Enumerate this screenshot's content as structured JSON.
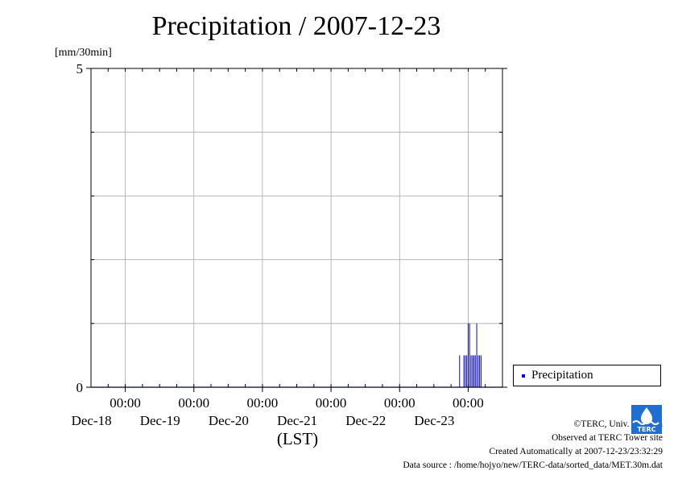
{
  "chart_data": {
    "type": "bar",
    "title": "Precipitation / 2007-12-23",
    "ylabel": "[mm/30min]",
    "xlabel": "(LST)",
    "ylim": [
      0,
      5
    ],
    "y_ticks": [
      "0",
      "5"
    ],
    "xlim": [
      "2007-12-17 12:00",
      "2007-12-23 12:00"
    ],
    "x_ticks": [
      {
        "time": "2007-12-18 00:00",
        "label": "00:00",
        "date": "Dec-18"
      },
      {
        "time": "2007-12-19 00:00",
        "label": "00:00",
        "date": "Dec-19"
      },
      {
        "time": "2007-12-20 00:00",
        "label": "00:00",
        "date": "Dec-20"
      },
      {
        "time": "2007-12-21 00:00",
        "label": "00:00",
        "date": "Dec-21"
      },
      {
        "time": "2007-12-22 00:00",
        "label": "00:00",
        "date": "Dec-22"
      },
      {
        "time": "2007-12-23 00:00",
        "label": "00:00",
        "date": "Dec-23"
      }
    ],
    "grid": true,
    "legend_position": "right-bottom",
    "series": [
      {
        "name": "Precipitation",
        "color": "#0000cc",
        "points": [
          {
            "time": "2007-12-22 21:00",
            "value": 0.5
          },
          {
            "time": "2007-12-22 22:30",
            "value": 0.5
          },
          {
            "time": "2007-12-22 23:00",
            "value": 0.5
          },
          {
            "time": "2007-12-22 23:30",
            "value": 0.5
          },
          {
            "time": "2007-12-23 00:00",
            "value": 1.0
          },
          {
            "time": "2007-12-23 00:30",
            "value": 1.0
          },
          {
            "time": "2007-12-23 01:00",
            "value": 0.5
          },
          {
            "time": "2007-12-23 01:30",
            "value": 0.5
          },
          {
            "time": "2007-12-23 02:00",
            "value": 0.5
          },
          {
            "time": "2007-12-23 02:30",
            "value": 0.5
          },
          {
            "time": "2007-12-23 03:00",
            "value": 1.0
          },
          {
            "time": "2007-12-23 03:30",
            "value": 0.5
          },
          {
            "time": "2007-12-23 04:00",
            "value": 0.5
          },
          {
            "time": "2007-12-23 04:30",
            "value": 0.5
          }
        ]
      }
    ]
  },
  "footer": {
    "copyright": "©TERC, Univ. Tsukuba",
    "observed": "Observed at TERC Tower site",
    "created": "Created Automatically at 2007-12-23/23:32:29",
    "source": "Data source : /home/hojyo/new/TERC-data/sorted_data/MET.30m.dat",
    "logo_text": "TERC"
  }
}
